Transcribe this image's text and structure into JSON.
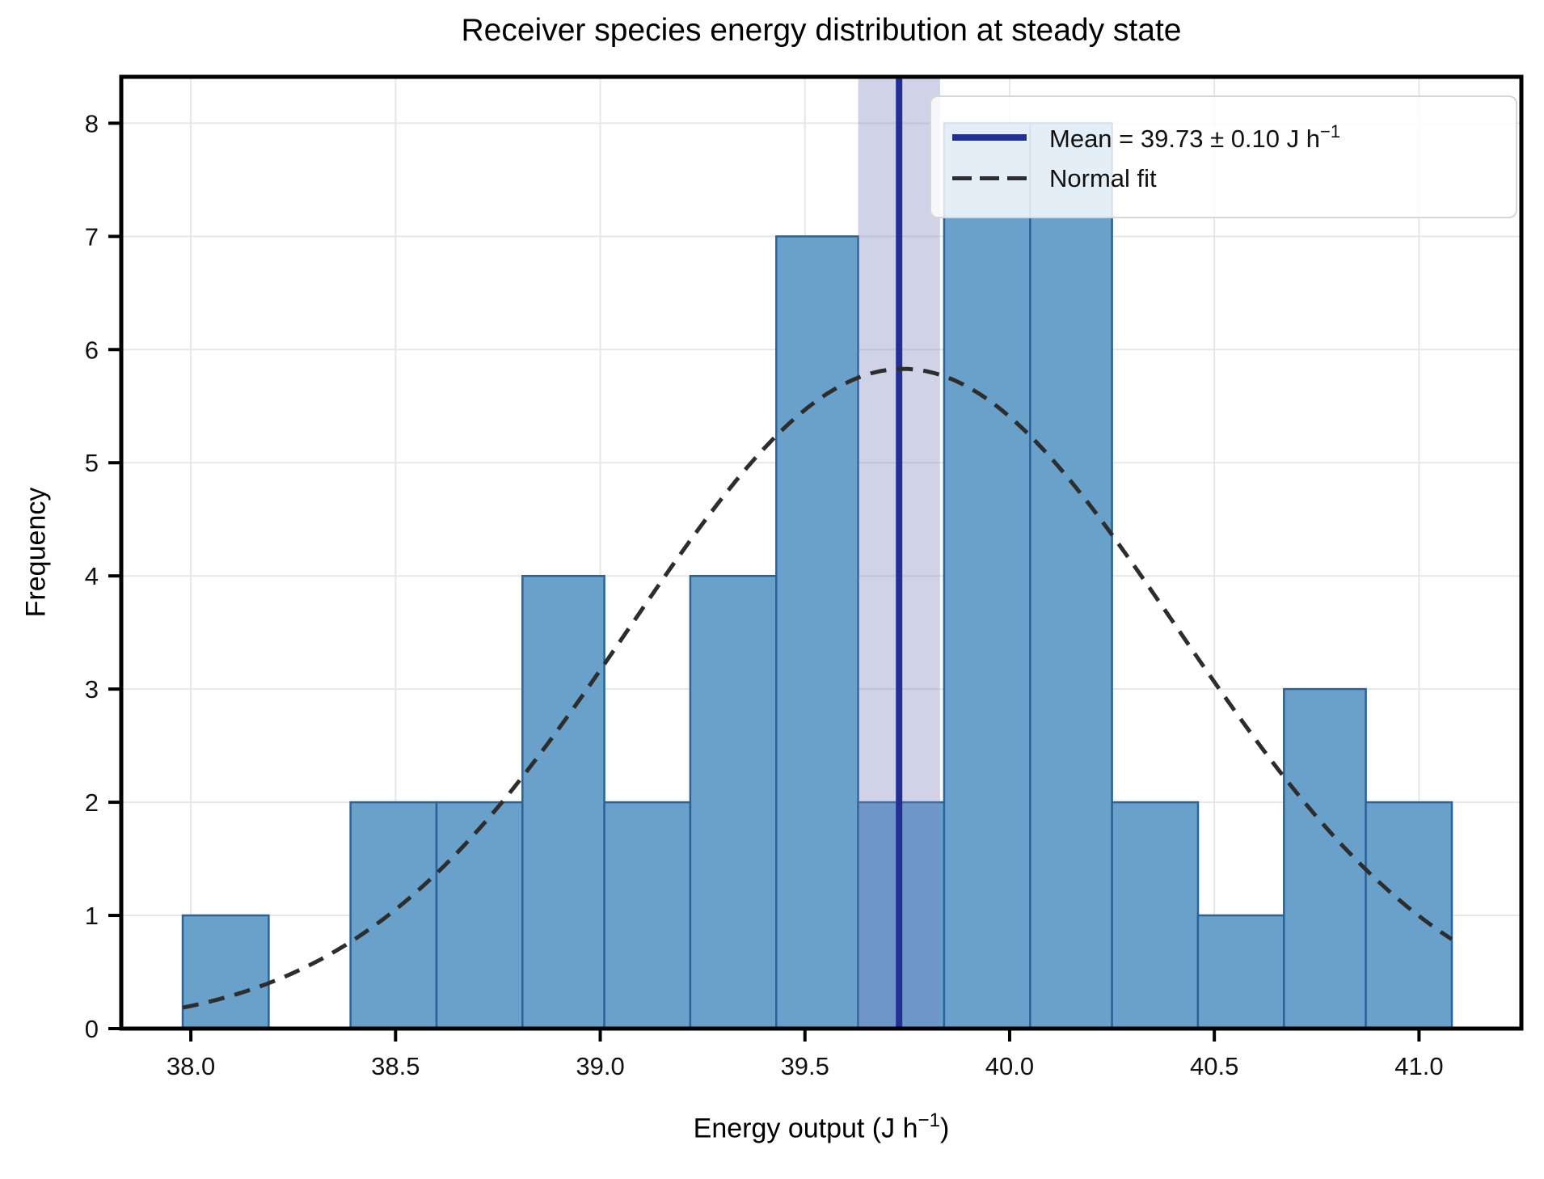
{
  "figure_title": "Receiver species energy distribution at steady state",
  "axes": {
    "ylabel": "Frequency",
    "xlabel_prefix": "Energy output (J h",
    "xlabel_sup": "−1",
    "xlabel_suffix": ")"
  },
  "legend": {
    "mean_prefix": "Mean = 39.73 ± 0.10 J h",
    "mean_sup": "−1",
    "mean_suffix": "",
    "normal_label": "Normal fit"
  },
  "colors": {
    "bar_fill": "#69a1cb",
    "bar_edge": "#2a6398",
    "mean_line": "#232f93",
    "band_fill": "#7882be",
    "band_alpha": 0.35,
    "curve": "#2d2d2d",
    "grid": "#e7e7ea",
    "spine": "#000000",
    "tick_label": "#111111",
    "legend_border": "#d7d7d7"
  },
  "chart_data": {
    "type": "bar",
    "subtype": "histogram",
    "title": "Receiver species energy distribution at steady state",
    "xlabel": "Energy output (J h⁻¹)",
    "ylabel": "Frequency",
    "bin_edges": [
      37.98,
      38.19,
      38.39,
      38.6,
      38.81,
      39.01,
      39.22,
      39.43,
      39.63,
      39.84,
      40.05,
      40.25,
      40.46,
      40.67,
      40.87,
      41.08
    ],
    "counts": [
      1,
      0,
      2,
      2,
      4,
      2,
      4,
      7,
      2,
      8,
      8,
      2,
      1,
      3,
      2
    ],
    "mean": 39.73,
    "mean_uncertainty": 0.1,
    "mean_band": [
      39.63,
      39.83
    ],
    "normal_fit": {
      "mu": 39.74,
      "sigma": 0.67,
      "peak": 5.83,
      "x_range": [
        37.98,
        41.08
      ]
    },
    "xlim": [
      37.83,
      41.25
    ],
    "ylim": [
      0,
      8.41
    ],
    "xticks": {
      "values": [
        38.0,
        38.5,
        39.0,
        39.5,
        40.0,
        40.5,
        41.0
      ],
      "labels": [
        "38.0",
        "38.5",
        "39.0",
        "39.5",
        "40.0",
        "40.5",
        "41.0"
      ]
    },
    "yticks": {
      "values": [
        0,
        1,
        2,
        3,
        4,
        5,
        6,
        7,
        8
      ],
      "labels": [
        "0",
        "1",
        "2",
        "3",
        "4",
        "5",
        "6",
        "7",
        "8"
      ]
    },
    "grid": true,
    "legend_position": "upper right",
    "legend_entries": [
      "Mean = 39.73 ± 0.10 J h⁻¹",
      "Normal fit"
    ]
  }
}
